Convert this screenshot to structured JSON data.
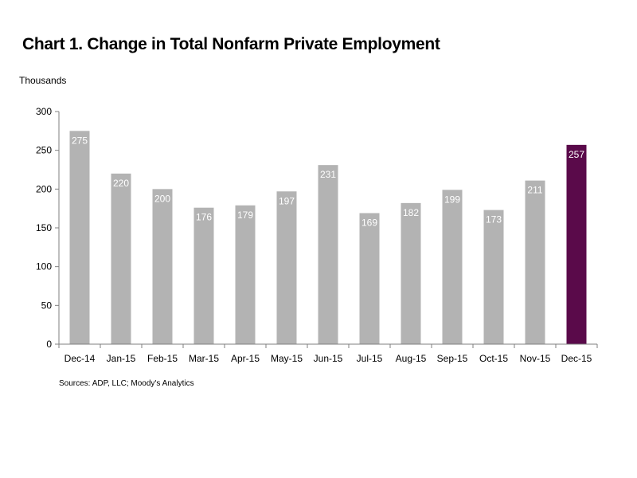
{
  "title": "Chart 1. Change in Total Nonfarm Private Employment",
  "unit_label": "Thousands",
  "source": "Sources: ADP, LLC; Moody's Analytics",
  "colors": {
    "bar": "#b3b3b3",
    "highlight": "#5a0a4a",
    "axis": "#7f7f7f"
  },
  "chart_data": {
    "type": "bar",
    "title": "Chart 1. Change in Total Nonfarm Private Employment",
    "ylabel": "Thousands",
    "xlabel": "",
    "categories": [
      "Dec-14",
      "Jan-15",
      "Feb-15",
      "Mar-15",
      "Apr-15",
      "May-15",
      "Jun-15",
      "Jul-15",
      "Aug-15",
      "Sep-15",
      "Oct-15",
      "Nov-15",
      "Dec-15"
    ],
    "values": [
      275,
      220,
      200,
      176,
      179,
      197,
      231,
      169,
      182,
      199,
      173,
      211,
      257
    ],
    "highlight_category": "Dec-15",
    "ylim": [
      0,
      300
    ],
    "yticks": [
      0,
      50,
      100,
      150,
      200,
      250,
      300
    ],
    "grid": false,
    "legend": "none"
  }
}
